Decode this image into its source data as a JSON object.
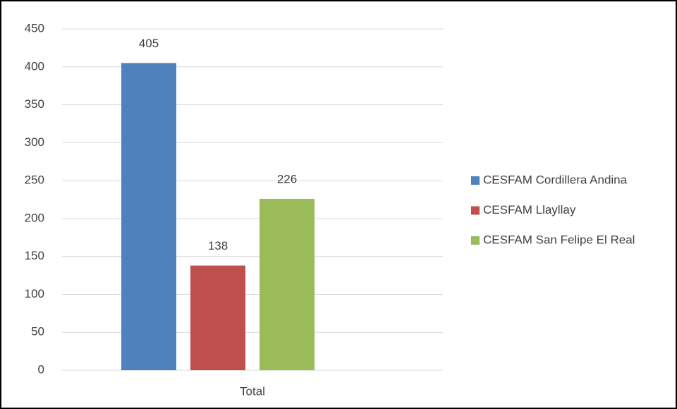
{
  "chart_data": {
    "type": "bar",
    "categories": [
      "Total"
    ],
    "series": [
      {
        "name": "CESFAM Cordillera Andina",
        "color": "#4f81bd",
        "values": [
          405
        ]
      },
      {
        "name": "CESFAM Llayllay",
        "color": "#c0504d",
        "values": [
          138
        ]
      },
      {
        "name": "CESFAM San Felipe El Real",
        "color": "#9bbb59",
        "values": [
          226
        ]
      }
    ],
    "ylim": [
      0,
      450
    ],
    "yticks": [
      0,
      50,
      100,
      150,
      200,
      250,
      300,
      350,
      400,
      450
    ],
    "grid": true,
    "legend": "right"
  }
}
